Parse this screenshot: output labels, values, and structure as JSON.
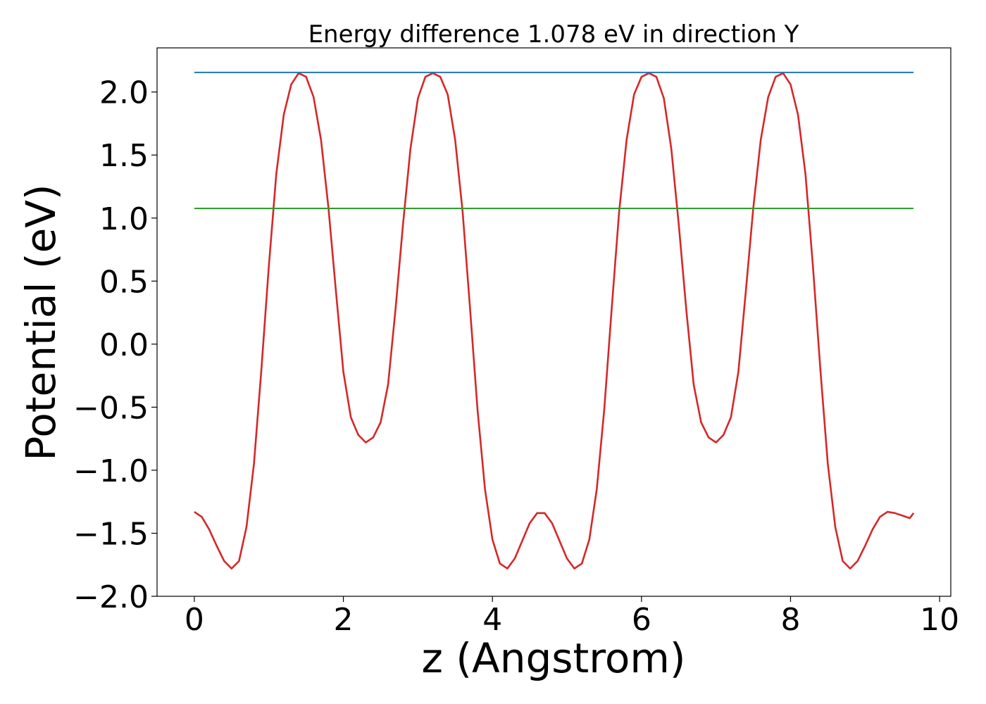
{
  "chart_data": {
    "type": "line",
    "title": "Energy difference 1.078 eV in direction Y",
    "xlabel": "z (Angstrom)",
    "ylabel": "Potential (eV)",
    "xlim": [
      -0.5,
      10.15
    ],
    "ylim": [
      -2.0,
      2.35
    ],
    "xticks": [
      0,
      2,
      4,
      6,
      8,
      10
    ],
    "xtick_labels": [
      "0",
      "2",
      "4",
      "6",
      "8",
      "10"
    ],
    "yticks": [
      -2.0,
      -1.5,
      -1.0,
      -0.5,
      0.0,
      0.5,
      1.0,
      1.5,
      2.0
    ],
    "ytick_labels": [
      "−2.0",
      "−1.5",
      "−1.0",
      "−0.5",
      "0.0",
      "0.5",
      "1.0",
      "1.5",
      "2.0"
    ],
    "grid": false,
    "legend": "none",
    "series": [
      {
        "color": "#d62728",
        "style": "line",
        "x": [
          0.0,
          0.1,
          0.2,
          0.3,
          0.4,
          0.5,
          0.6,
          0.7,
          0.8,
          0.9,
          1.0,
          1.1,
          1.2,
          1.3,
          1.4,
          1.5,
          1.6,
          1.7,
          1.8,
          1.9,
          2.0,
          2.1,
          2.2,
          2.3,
          2.4,
          2.5,
          2.6,
          2.7,
          2.8,
          2.9,
          3.0,
          3.1,
          3.2,
          3.3,
          3.4,
          3.5,
          3.6,
          3.7,
          3.8,
          3.9,
          4.0,
          4.1,
          4.2,
          4.3,
          4.4,
          4.5,
          4.6,
          4.7,
          4.8,
          4.9,
          5.0,
          5.1,
          5.2,
          5.3,
          5.4,
          5.5,
          5.6,
          5.7,
          5.8,
          5.9,
          6.0,
          6.1,
          6.2,
          6.3,
          6.4,
          6.5,
          6.6,
          6.7,
          6.8,
          6.9,
          7.0,
          7.1,
          7.2,
          7.3,
          7.4,
          7.5,
          7.6,
          7.7,
          7.8,
          7.9,
          8.0,
          8.1,
          8.2,
          8.3,
          8.4,
          8.5,
          8.6,
          8.7,
          8.8,
          8.9,
          9.0,
          9.1,
          9.2,
          9.3,
          9.4,
          9.5,
          9.6,
          9.65
        ],
        "y": [
          -1.33,
          -1.37,
          -1.47,
          -1.6,
          -1.72,
          -1.78,
          -1.72,
          -1.45,
          -0.95,
          -0.2,
          0.62,
          1.35,
          1.82,
          2.06,
          2.15,
          2.12,
          1.96,
          1.62,
          1.08,
          0.42,
          -0.22,
          -0.58,
          -0.72,
          -0.78,
          -0.74,
          -0.62,
          -0.32,
          0.28,
          0.95,
          1.55,
          1.95,
          2.12,
          2.15,
          2.12,
          1.98,
          1.62,
          1.05,
          0.28,
          -0.52,
          -1.15,
          -1.55,
          -1.74,
          -1.78,
          -1.7,
          -1.56,
          -1.42,
          -1.34,
          -1.34,
          -1.42,
          -1.56,
          -1.7,
          -1.78,
          -1.74,
          -1.55,
          -1.15,
          -0.52,
          0.28,
          1.05,
          1.62,
          1.98,
          2.12,
          2.15,
          2.12,
          1.95,
          1.55,
          0.95,
          0.28,
          -0.32,
          -0.62,
          -0.74,
          -0.78,
          -0.72,
          -0.58,
          -0.22,
          0.42,
          1.08,
          1.62,
          1.96,
          2.12,
          2.15,
          2.06,
          1.82,
          1.35,
          0.62,
          -0.2,
          -0.95,
          -1.45,
          -1.72,
          -1.78,
          -1.72,
          -1.6,
          -1.47,
          -1.37,
          -1.33,
          -1.34,
          -1.36,
          -1.38,
          -1.34
        ]
      },
      {
        "color": "#1f77b4",
        "style": "hline",
        "x": [
          0.0,
          9.65
        ],
        "y": [
          2.155,
          2.155
        ]
      },
      {
        "color": "#2ca02c",
        "style": "hline",
        "x": [
          0.0,
          9.65
        ],
        "y": [
          1.077,
          1.077
        ]
      }
    ]
  }
}
